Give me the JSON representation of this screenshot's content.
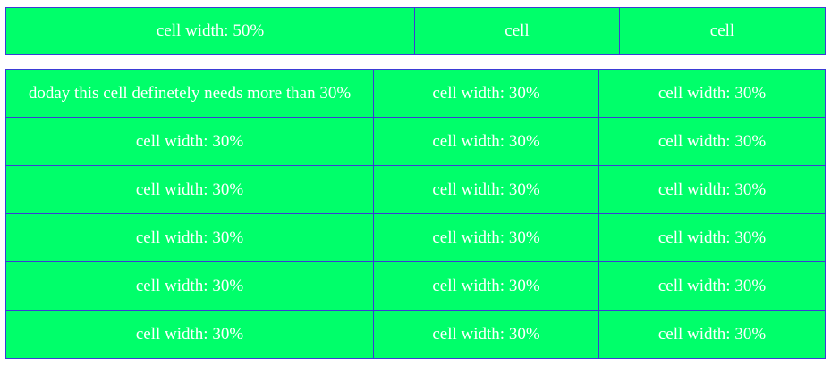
{
  "top_table": {
    "cells": [
      "cell width: 50%",
      "cell",
      "cell"
    ]
  },
  "bottom_table": {
    "rows": [
      [
        "doday this cell definetely needs more than 30%",
        "cell width: 30%",
        "cell width: 30%"
      ],
      [
        "cell width: 30%",
        "cell width: 30%",
        "cell width: 30%"
      ],
      [
        "cell width: 30%",
        "cell width: 30%",
        "cell width: 30%"
      ],
      [
        "cell width: 30%",
        "cell width: 30%",
        "cell width: 30%"
      ],
      [
        "cell width: 30%",
        "cell width: 30%",
        "cell width: 30%"
      ],
      [
        "cell width: 30%",
        "cell width: 30%",
        "cell width: 30%"
      ]
    ]
  },
  "colors": {
    "cell_background": "#00ff6a",
    "cell_border": "#3b3bd6",
    "text": "#ffffff"
  }
}
